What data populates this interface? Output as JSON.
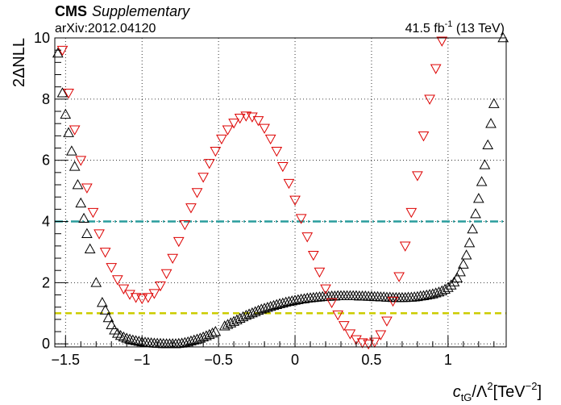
{
  "header": {
    "experiment": "CMS",
    "tag": "Supplementary",
    "arxiv": "arXiv:2012.04120",
    "lumi_prefix": "41.5 fb",
    "lumi_exp": "-1",
    "lumi_suffix": " (13 TeV)"
  },
  "axes": {
    "ylabel": "2ΔNLL",
    "xlabel_c": "c",
    "xlabel_sub": "tG",
    "xlabel_mid": "/Λ",
    "xlabel_sup": "2",
    "xlabel_unit": "[TeV",
    "xlabel_unit_sup": "−2",
    "xlabel_close": "]"
  },
  "chart_data": {
    "type": "scatter",
    "xlim": [
      -1.57,
      1.38
    ],
    "ylim": [
      -0.1,
      10.0
    ],
    "xticks": [
      -1.5,
      -1,
      -0.5,
      0,
      0.5,
      1
    ],
    "xtick_labels": [
      "−1.5",
      "−1",
      "−0.5",
      "0",
      "0.5",
      "1"
    ],
    "yticks": [
      0,
      2,
      4,
      6,
      8,
      10
    ],
    "ytick_labels": [
      "0",
      "2",
      "4",
      "6",
      "8",
      "10"
    ],
    "grid": true,
    "reference_lines": [
      {
        "y": 4.0,
        "color": "#2a9d9d",
        "style": "dash-dot"
      },
      {
        "y": 1.0,
        "color": "#cccc00",
        "style": "dashed"
      }
    ],
    "series": [
      {
        "marker": "triangle-up",
        "color": "#000000",
        "points": [
          [
            -1.55,
            9.5
          ],
          [
            -1.52,
            8.2
          ],
          [
            -1.5,
            7.5
          ],
          [
            -1.48,
            6.9
          ],
          [
            -1.46,
            6.3
          ],
          [
            -1.44,
            5.8
          ],
          [
            -1.42,
            5.2
          ],
          [
            -1.4,
            4.6
          ],
          [
            -1.38,
            4.1
          ],
          [
            -1.36,
            3.6
          ],
          [
            -1.34,
            3.1
          ],
          [
            -1.3,
            2.0
          ],
          [
            -1.26,
            1.35
          ],
          [
            -1.24,
            1.1
          ],
          [
            -1.22,
            0.85
          ],
          [
            -1.2,
            0.62
          ],
          [
            -1.18,
            0.45
          ],
          [
            -1.16,
            0.34
          ],
          [
            -1.14,
            0.27
          ],
          [
            -1.12,
            0.22
          ],
          [
            -1.1,
            0.18
          ],
          [
            -1.08,
            0.15
          ],
          [
            -1.06,
            0.12
          ],
          [
            -1.04,
            0.1
          ],
          [
            -1.02,
            0.08
          ],
          [
            -1.0,
            0.06
          ],
          [
            -0.98,
            0.05
          ],
          [
            -0.96,
            0.04
          ],
          [
            -0.94,
            0.03
          ],
          [
            -0.92,
            0.02
          ],
          [
            -0.9,
            0.015
          ],
          [
            -0.88,
            0.01
          ],
          [
            -0.86,
            0.005
          ],
          [
            -0.84,
            0.0
          ],
          [
            -0.82,
            0.0
          ],
          [
            -0.8,
            0.0
          ],
          [
            -0.78,
            0.0
          ],
          [
            -0.76,
            0.01
          ],
          [
            -0.74,
            0.02
          ],
          [
            -0.72,
            0.04
          ],
          [
            -0.7,
            0.06
          ],
          [
            -0.68,
            0.09
          ],
          [
            -0.66,
            0.12
          ],
          [
            -0.64,
            0.15
          ],
          [
            -0.62,
            0.18
          ],
          [
            -0.6,
            0.22
          ],
          [
            -0.58,
            0.26
          ],
          [
            -0.56,
            0.3
          ],
          [
            -0.54,
            0.35
          ],
          [
            -0.52,
            0.4
          ],
          [
            -0.46,
            0.58
          ],
          [
            -0.44,
            0.63
          ],
          [
            -0.42,
            0.68
          ],
          [
            -0.4,
            0.73
          ],
          [
            -0.38,
            0.78
          ],
          [
            -0.36,
            0.83
          ],
          [
            -0.34,
            0.88
          ],
          [
            -0.32,
            0.93
          ],
          [
            -0.3,
            0.97
          ],
          [
            -0.28,
            1.01
          ],
          [
            -0.26,
            1.05
          ],
          [
            -0.24,
            1.09
          ],
          [
            -0.22,
            1.13
          ],
          [
            -0.2,
            1.16
          ],
          [
            -0.18,
            1.19
          ],
          [
            -0.16,
            1.22
          ],
          [
            -0.14,
            1.25
          ],
          [
            -0.12,
            1.28
          ],
          [
            -0.1,
            1.31
          ],
          [
            -0.08,
            1.33
          ],
          [
            -0.06,
            1.36
          ],
          [
            -0.04,
            1.38
          ],
          [
            -0.02,
            1.4
          ],
          [
            0.0,
            1.42
          ],
          [
            0.02,
            1.44
          ],
          [
            0.04,
            1.46
          ],
          [
            0.06,
            1.47
          ],
          [
            0.08,
            1.49
          ],
          [
            0.1,
            1.5
          ],
          [
            0.12,
            1.51
          ],
          [
            0.14,
            1.52
          ],
          [
            0.16,
            1.53
          ],
          [
            0.18,
            1.54
          ],
          [
            0.2,
            1.55
          ],
          [
            0.22,
            1.55
          ],
          [
            0.24,
            1.56
          ],
          [
            0.26,
            1.56
          ],
          [
            0.28,
            1.57
          ],
          [
            0.3,
            1.57
          ],
          [
            0.32,
            1.57
          ],
          [
            0.34,
            1.57
          ],
          [
            0.36,
            1.57
          ],
          [
            0.38,
            1.57
          ],
          [
            0.4,
            1.57
          ],
          [
            0.42,
            1.56
          ],
          [
            0.44,
            1.56
          ],
          [
            0.46,
            1.56
          ],
          [
            0.48,
            1.55
          ],
          [
            0.5,
            1.55
          ],
          [
            0.52,
            1.54
          ],
          [
            0.54,
            1.54
          ],
          [
            0.56,
            1.53
          ],
          [
            0.58,
            1.53
          ],
          [
            0.6,
            1.52
          ],
          [
            0.62,
            1.52
          ],
          [
            0.64,
            1.51
          ],
          [
            0.66,
            1.51
          ],
          [
            0.68,
            1.51
          ],
          [
            0.7,
            1.51
          ],
          [
            0.72,
            1.51
          ],
          [
            0.74,
            1.52
          ],
          [
            0.76,
            1.52
          ],
          [
            0.78,
            1.53
          ],
          [
            0.8,
            1.54
          ],
          [
            0.82,
            1.56
          ],
          [
            0.84,
            1.57
          ],
          [
            0.86,
            1.59
          ],
          [
            0.88,
            1.61
          ],
          [
            0.9,
            1.63
          ],
          [
            0.92,
            1.66
          ],
          [
            0.94,
            1.69
          ],
          [
            0.96,
            1.73
          ],
          [
            0.98,
            1.78
          ],
          [
            1.0,
            1.84
          ],
          [
            1.02,
            1.92
          ],
          [
            1.04,
            2.02
          ],
          [
            1.06,
            2.15
          ],
          [
            1.08,
            2.35
          ],
          [
            1.1,
            2.6
          ],
          [
            1.12,
            2.9
          ],
          [
            1.14,
            3.3
          ],
          [
            1.16,
            3.75
          ],
          [
            1.18,
            4.25
          ],
          [
            1.2,
            4.75
          ],
          [
            1.22,
            5.3
          ],
          [
            1.24,
            5.85
          ],
          [
            1.26,
            6.5
          ],
          [
            1.28,
            7.2
          ],
          [
            1.3,
            7.85
          ],
          [
            1.36,
            10.0
          ]
        ]
      },
      {
        "marker": "triangle-down",
        "color": "#dd0000",
        "points": [
          [
            -1.52,
            9.6
          ],
          [
            -1.48,
            8.2
          ],
          [
            -1.44,
            7.0
          ],
          [
            -1.4,
            6.0
          ],
          [
            -1.36,
            5.1
          ],
          [
            -1.32,
            4.3
          ],
          [
            -1.28,
            3.6
          ],
          [
            -1.24,
            3.0
          ],
          [
            -1.2,
            2.5
          ],
          [
            -1.16,
            2.1
          ],
          [
            -1.12,
            1.8
          ],
          [
            -1.08,
            1.62
          ],
          [
            -1.04,
            1.52
          ],
          [
            -1.0,
            1.48
          ],
          [
            -0.96,
            1.52
          ],
          [
            -0.92,
            1.65
          ],
          [
            -0.88,
            1.9
          ],
          [
            -0.84,
            2.3
          ],
          [
            -0.8,
            2.8
          ],
          [
            -0.76,
            3.35
          ],
          [
            -0.72,
            3.9
          ],
          [
            -0.68,
            4.45
          ],
          [
            -0.64,
            4.95
          ],
          [
            -0.6,
            5.45
          ],
          [
            -0.56,
            5.9
          ],
          [
            -0.52,
            6.3
          ],
          [
            -0.48,
            6.7
          ],
          [
            -0.44,
            7.0
          ],
          [
            -0.4,
            7.22
          ],
          [
            -0.36,
            7.38
          ],
          [
            -0.32,
            7.45
          ],
          [
            -0.28,
            7.42
          ],
          [
            -0.24,
            7.3
          ],
          [
            -0.2,
            7.05
          ],
          [
            -0.16,
            6.7
          ],
          [
            -0.12,
            6.3
          ],
          [
            -0.08,
            5.8
          ],
          [
            -0.04,
            5.25
          ],
          [
            0.0,
            4.7
          ],
          [
            0.04,
            4.1
          ],
          [
            0.08,
            3.5
          ],
          [
            0.12,
            2.9
          ],
          [
            0.16,
            2.35
          ],
          [
            0.2,
            1.8
          ],
          [
            0.24,
            1.35
          ],
          [
            0.28,
            0.95
          ],
          [
            0.32,
            0.6
          ],
          [
            0.36,
            0.33
          ],
          [
            0.4,
            0.14
          ],
          [
            0.44,
            0.04
          ],
          [
            0.48,
            0.0
          ],
          [
            0.52,
            0.06
          ],
          [
            0.56,
            0.3
          ],
          [
            0.6,
            0.75
          ],
          [
            0.64,
            1.4
          ],
          [
            0.68,
            2.2
          ],
          [
            0.72,
            3.2
          ],
          [
            0.76,
            4.3
          ],
          [
            0.8,
            5.5
          ],
          [
            0.84,
            6.8
          ],
          [
            0.88,
            8.0
          ],
          [
            0.92,
            9.0
          ],
          [
            0.96,
            9.9
          ]
        ]
      }
    ]
  }
}
